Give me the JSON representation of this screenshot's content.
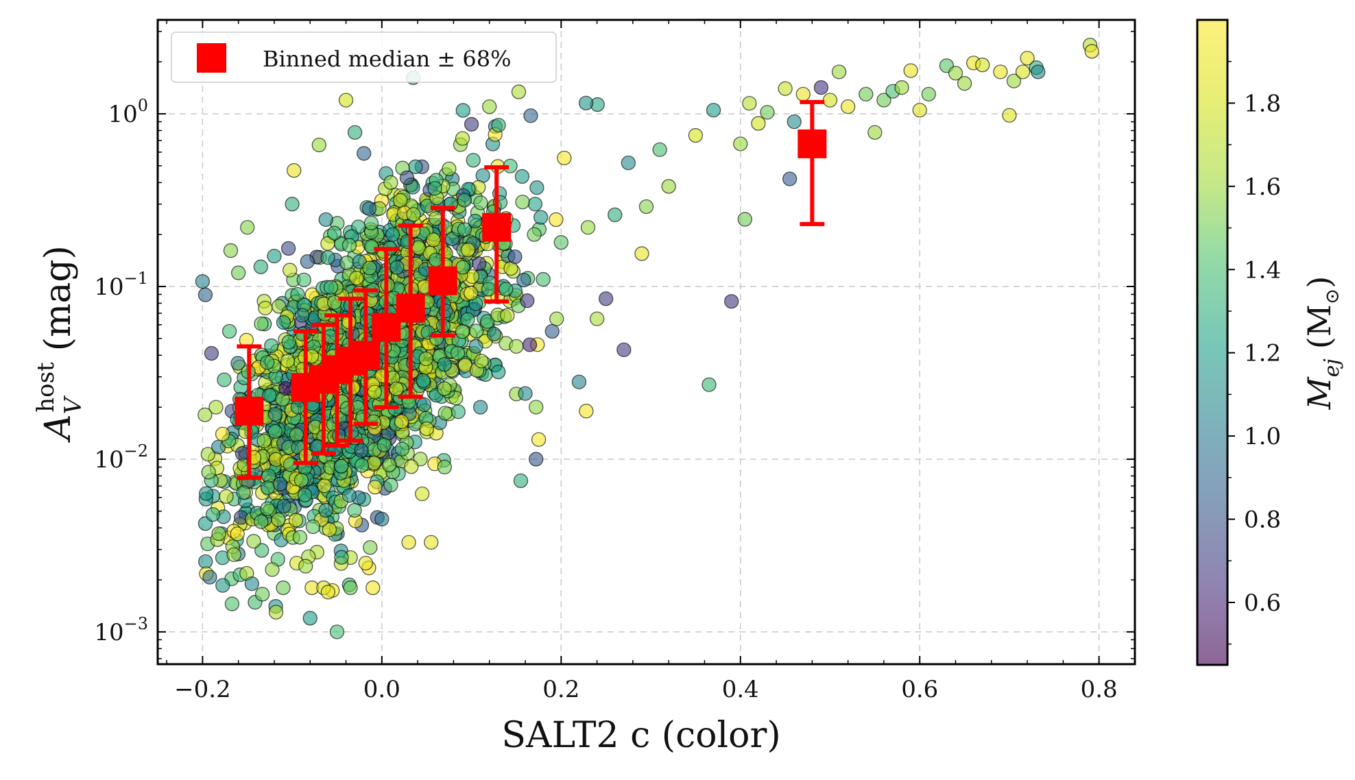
{
  "chart_data": {
    "type": "scatter",
    "xlabel": "SALT2 c (color)",
    "ylabel_main": "A",
    "ylabel_sub": "V",
    "ylabel_sup": "host",
    "ylabel_unit": "(mag)",
    "xlim": [
      -0.25,
      0.84
    ],
    "ylim": [
      0.00065,
      3.5
    ],
    "yscale": "log",
    "grid": true,
    "x_ticks": [
      {
        "value": -0.2,
        "label": "−0.2"
      },
      {
        "value": 0.0,
        "label": "0.0"
      },
      {
        "value": 0.2,
        "label": "0.2"
      },
      {
        "value": 0.4,
        "label": "0.4"
      },
      {
        "value": 0.6,
        "label": "0.6"
      },
      {
        "value": 0.8,
        "label": "0.8"
      }
    ],
    "y_ticks": [
      {
        "value": 0.001,
        "base": "10",
        "exp": "−3"
      },
      {
        "value": 0.01,
        "base": "10",
        "exp": "−2"
      },
      {
        "value": 0.1,
        "base": "10",
        "exp": "−1"
      },
      {
        "value": 1,
        "base": "10",
        "exp": "0"
      }
    ],
    "legend": {
      "position": "top-left",
      "label": "Binned median ± 68%",
      "color": "#ff0000"
    },
    "colorbar": {
      "label_main": "M",
      "label_sub": "ej",
      "label_unit": "(M",
      "label_unit_sub": "⊙",
      "label_close": ")",
      "range": [
        0.45,
        2.0
      ],
      "colormap": "viridis",
      "alpha": 0.6,
      "ticks": [
        {
          "value": 0.6,
          "label": "0.6"
        },
        {
          "value": 0.8,
          "label": "0.8"
        },
        {
          "value": 1.0,
          "label": "1.0"
        },
        {
          "value": 1.2,
          "label": "1.2"
        },
        {
          "value": 1.4,
          "label": "1.4"
        },
        {
          "value": 1.6,
          "label": "1.6"
        },
        {
          "value": 1.8,
          "label": "1.8"
        }
      ]
    },
    "binned_medians": [
      {
        "x": -0.148,
        "y": 0.019,
        "lo": 0.0078,
        "hi": 0.045
      },
      {
        "x": -0.085,
        "y": 0.026,
        "lo": 0.0095,
        "hi": 0.055
      },
      {
        "x": -0.065,
        "y": 0.029,
        "lo": 0.0108,
        "hi": 0.06
      },
      {
        "x": -0.05,
        "y": 0.033,
        "lo": 0.012,
        "hi": 0.068
      },
      {
        "x": -0.035,
        "y": 0.037,
        "lo": 0.0128,
        "hi": 0.085
      },
      {
        "x": -0.018,
        "y": 0.04,
        "lo": 0.016,
        "hi": 0.095
      },
      {
        "x": 0.005,
        "y": 0.058,
        "lo": 0.02,
        "hi": 0.165
      },
      {
        "x": 0.032,
        "y": 0.075,
        "lo": 0.023,
        "hi": 0.225
      },
      {
        "x": 0.068,
        "y": 0.108,
        "lo": 0.052,
        "hi": 0.285
      },
      {
        "x": 0.128,
        "y": 0.22,
        "lo": 0.082,
        "hi": 0.49
      },
      {
        "x": 0.48,
        "y": 0.67,
        "lo": 0.23,
        "hi": 1.17
      }
    ],
    "points": [
      {
        "x": -0.2,
        "y": 0.107,
        "m": 1.05
      },
      {
        "x": -0.19,
        "y": 0.041,
        "m": 0.7
      },
      {
        "x": -0.185,
        "y": 0.02,
        "m": 1.65
      },
      {
        "x": -0.17,
        "y": 0.055,
        "m": 1.4
      },
      {
        "x": -0.165,
        "y": 0.0028,
        "m": 1.6
      },
      {
        "x": -0.16,
        "y": 0.12,
        "m": 1.5
      },
      {
        "x": -0.15,
        "y": 0.22,
        "m": 1.55
      },
      {
        "x": -0.145,
        "y": 0.0019,
        "m": 1.1
      },
      {
        "x": -0.135,
        "y": 0.13,
        "m": 1.3
      },
      {
        "x": -0.13,
        "y": 0.075,
        "m": 1.75
      },
      {
        "x": -0.12,
        "y": 0.15,
        "m": 1.2
      },
      {
        "x": -0.118,
        "y": 0.0013,
        "m": 1.7
      },
      {
        "x": -0.11,
        "y": 0.0018,
        "m": 1.5
      },
      {
        "x": -0.1,
        "y": 0.3,
        "m": 1.3
      },
      {
        "x": -0.098,
        "y": 0.47,
        "m": 1.9
      },
      {
        "x": -0.095,
        "y": 0.0025,
        "m": 1.8
      },
      {
        "x": -0.085,
        "y": 0.0024,
        "m": 1.6
      },
      {
        "x": -0.08,
        "y": 0.0012,
        "m": 1.2
      },
      {
        "x": -0.078,
        "y": 0.0018,
        "m": 1.9
      },
      {
        "x": -0.07,
        "y": 0.66,
        "m": 1.6
      },
      {
        "x": -0.065,
        "y": 0.0018,
        "m": 1.85
      },
      {
        "x": -0.06,
        "y": 0.0017,
        "m": 1.9
      },
      {
        "x": -0.05,
        "y": 0.001,
        "m": 1.4
      },
      {
        "x": -0.045,
        "y": 0.0027,
        "m": 1.3
      },
      {
        "x": -0.04,
        "y": 1.2,
        "m": 1.8
      },
      {
        "x": -0.035,
        "y": 0.0018,
        "m": 1.5
      },
      {
        "x": -0.03,
        "y": 0.78,
        "m": 1.3
      },
      {
        "x": -0.02,
        "y": 0.59,
        "m": 0.9
      },
      {
        "x": -0.018,
        "y": 0.0025,
        "m": 1.9
      },
      {
        "x": -0.01,
        "y": 0.0018,
        "m": 1.95
      },
      {
        "x": -0.005,
        "y": 0.0046,
        "m": 0.8
      },
      {
        "x": 0.0,
        "y": 0.0045,
        "m": 1.0
      },
      {
        "x": 0.01,
        "y": 0.4,
        "m": 1.6
      },
      {
        "x": 0.03,
        "y": 0.0033,
        "m": 1.9
      },
      {
        "x": 0.035,
        "y": 1.62,
        "m": 1.2
      },
      {
        "x": 0.045,
        "y": 0.0063,
        "m": 1.8
      },
      {
        "x": 0.05,
        "y": 0.015,
        "m": 1.85
      },
      {
        "x": 0.055,
        "y": 0.0033,
        "m": 1.9
      },
      {
        "x": 0.07,
        "y": 0.009,
        "m": 1.5
      },
      {
        "x": 0.075,
        "y": 0.48,
        "m": 1.6
      },
      {
        "x": 0.09,
        "y": 0.72,
        "m": 1.7
      },
      {
        "x": 0.1,
        "y": 0.87,
        "m": 0.7
      },
      {
        "x": 0.105,
        "y": 0.045,
        "m": 1.1
      },
      {
        "x": 0.11,
        "y": 0.02,
        "m": 1.1
      },
      {
        "x": 0.12,
        "y": 1.1,
        "m": 1.6
      },
      {
        "x": 0.13,
        "y": 0.032,
        "m": 1.2
      },
      {
        "x": 0.14,
        "y": 0.068,
        "m": 1.75
      },
      {
        "x": 0.15,
        "y": 0.045,
        "m": 1.6
      },
      {
        "x": 0.155,
        "y": 0.0075,
        "m": 1.3
      },
      {
        "x": 0.16,
        "y": 0.024,
        "m": 1.1
      },
      {
        "x": 0.165,
        "y": 0.046,
        "m": 0.6
      },
      {
        "x": 0.17,
        "y": 0.2,
        "m": 1.5
      },
      {
        "x": 0.172,
        "y": 0.01,
        "m": 0.8
      },
      {
        "x": 0.175,
        "y": 0.013,
        "m": 1.95
      },
      {
        "x": 0.18,
        "y": 0.11,
        "m": 1.4
      },
      {
        "x": 0.19,
        "y": 0.055,
        "m": 0.85
      },
      {
        "x": 0.195,
        "y": 0.065,
        "m": 1.6
      },
      {
        "x": 0.2,
        "y": 0.18,
        "m": 1.45
      },
      {
        "x": 0.22,
        "y": 0.028,
        "m": 1.05
      },
      {
        "x": 0.228,
        "y": 0.019,
        "m": 1.95
      },
      {
        "x": 0.23,
        "y": 0.22,
        "m": 1.6
      },
      {
        "x": 0.24,
        "y": 0.065,
        "m": 1.65
      },
      {
        "x": 0.25,
        "y": 0.085,
        "m": 0.7
      },
      {
        "x": 0.26,
        "y": 0.26,
        "m": 1.3
      },
      {
        "x": 0.27,
        "y": 0.043,
        "m": 0.7
      },
      {
        "x": 0.275,
        "y": 0.52,
        "m": 1.1
      },
      {
        "x": 0.29,
        "y": 0.155,
        "m": 1.9
      },
      {
        "x": 0.295,
        "y": 0.29,
        "m": 1.55
      },
      {
        "x": 0.31,
        "y": 0.62,
        "m": 1.4
      },
      {
        "x": 0.32,
        "y": 0.38,
        "m": 1.6
      },
      {
        "x": 0.35,
        "y": 0.75,
        "m": 1.8
      },
      {
        "x": 0.365,
        "y": 0.027,
        "m": 1.35
      },
      {
        "x": 0.37,
        "y": 1.05,
        "m": 1.2
      },
      {
        "x": 0.39,
        "y": 0.082,
        "m": 0.65
      },
      {
        "x": 0.4,
        "y": 0.67,
        "m": 1.6
      },
      {
        "x": 0.405,
        "y": 0.245,
        "m": 1.5
      },
      {
        "x": 0.41,
        "y": 1.15,
        "m": 1.7
      },
      {
        "x": 0.42,
        "y": 0.88,
        "m": 1.8
      },
      {
        "x": 0.43,
        "y": 1.02,
        "m": 1.5
      },
      {
        "x": 0.45,
        "y": 1.4,
        "m": 1.75
      },
      {
        "x": 0.455,
        "y": 0.42,
        "m": 0.85
      },
      {
        "x": 0.46,
        "y": 0.9,
        "m": 1.1
      },
      {
        "x": 0.47,
        "y": 1.3,
        "m": 1.9
      },
      {
        "x": 0.49,
        "y": 1.42,
        "m": 0.65
      },
      {
        "x": 0.5,
        "y": 1.2,
        "m": 1.8
      },
      {
        "x": 0.51,
        "y": 1.75,
        "m": 1.6
      },
      {
        "x": 0.52,
        "y": 1.1,
        "m": 1.9
      },
      {
        "x": 0.54,
        "y": 1.3,
        "m": 1.5
      },
      {
        "x": 0.55,
        "y": 0.78,
        "m": 1.6
      },
      {
        "x": 0.56,
        "y": 1.2,
        "m": 1.5
      },
      {
        "x": 0.57,
        "y": 1.35,
        "m": 1.4
      },
      {
        "x": 0.58,
        "y": 1.42,
        "m": 1.6
      },
      {
        "x": 0.59,
        "y": 1.78,
        "m": 1.9
      },
      {
        "x": 0.6,
        "y": 1.05,
        "m": 1.85
      },
      {
        "x": 0.61,
        "y": 1.3,
        "m": 1.5
      },
      {
        "x": 0.63,
        "y": 1.9,
        "m": 1.45
      },
      {
        "x": 0.64,
        "y": 1.72,
        "m": 1.6
      },
      {
        "x": 0.65,
        "y": 1.5,
        "m": 1.6
      },
      {
        "x": 0.66,
        "y": 1.97,
        "m": 1.9
      },
      {
        "x": 0.67,
        "y": 1.92,
        "m": 1.8
      },
      {
        "x": 0.69,
        "y": 1.75,
        "m": 1.9
      },
      {
        "x": 0.7,
        "y": 0.98,
        "m": 1.85
      },
      {
        "x": 0.705,
        "y": 1.55,
        "m": 1.6
      },
      {
        "x": 0.715,
        "y": 1.75,
        "m": 1.8
      },
      {
        "x": 0.72,
        "y": 2.1,
        "m": 1.9
      },
      {
        "x": 0.73,
        "y": 1.85,
        "m": 1.3
      },
      {
        "x": 0.732,
        "y": 1.75,
        "m": 1.1
      },
      {
        "x": 0.79,
        "y": 2.5,
        "m": 1.7
      },
      {
        "x": 0.792,
        "y": 2.3,
        "m": 1.9
      }
    ],
    "cloud": {
      "seed": 7,
      "count": 2300,
      "x_mean": -0.02,
      "x_sd": 0.075,
      "trend_a": -1.35,
      "trend_b": 4.3,
      "scatter_dex": 0.36,
      "mass_mean": 1.45,
      "mass_sd": 0.32
    }
  }
}
